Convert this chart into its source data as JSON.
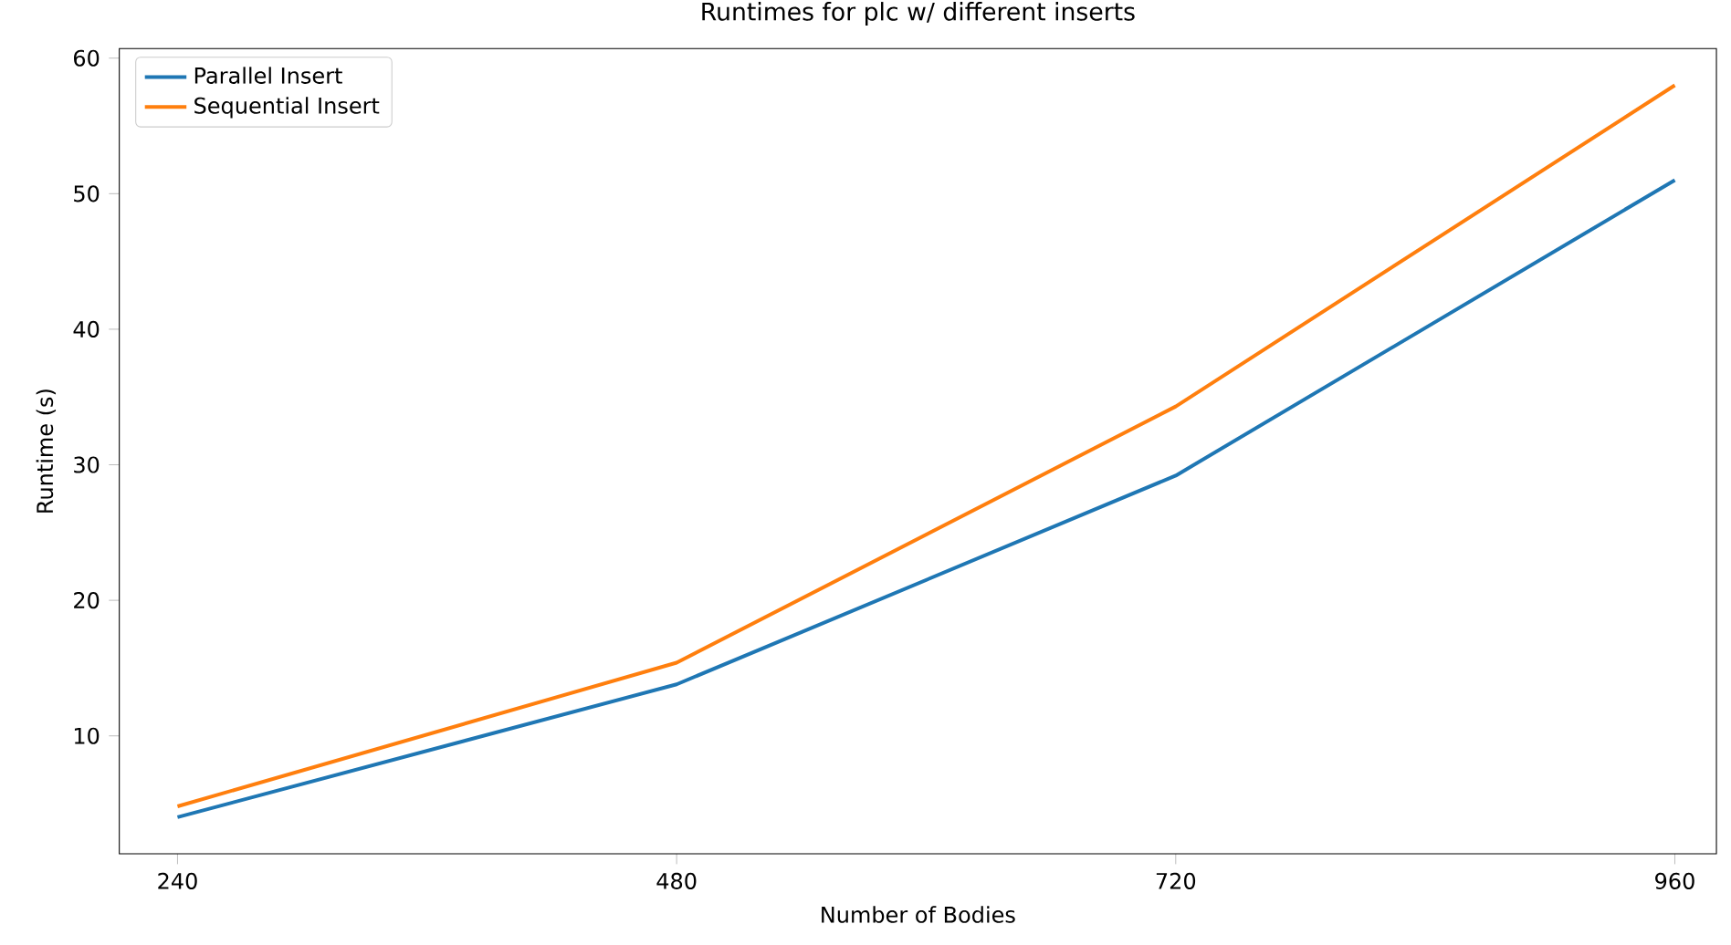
{
  "chart_data": {
    "type": "line",
    "title": "Runtimes for plc w/ different inserts",
    "xlabel": "Number of Bodies",
    "ylabel": "Runtime (s)",
    "x": [
      240,
      480,
      720,
      960
    ],
    "series": [
      {
        "name": "Parallel Insert",
        "color": "#1f77b4",
        "values": [
          4.0,
          13.8,
          29.2,
          51.0
        ]
      },
      {
        "name": "Sequential Insert",
        "color": "#ff7f0e",
        "values": [
          4.8,
          15.4,
          34.3,
          58.0
        ]
      }
    ],
    "xlim": [
      212,
      980
    ],
    "ylim": [
      1.3,
      60.7
    ],
    "xticks": [
      240,
      480,
      720,
      960
    ],
    "yticks": [
      10,
      20,
      30,
      40,
      50,
      60
    ],
    "legend": "top left",
    "grid": false,
    "marker": "none",
    "line_style": "solid"
  }
}
